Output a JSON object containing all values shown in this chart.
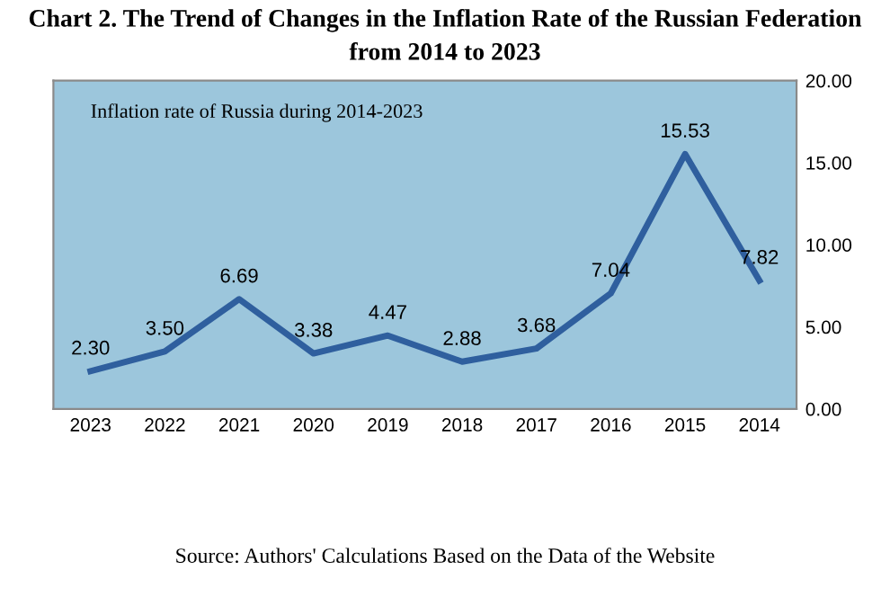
{
  "chart_data": {
    "type": "line",
    "title": "Chart 2. The Trend of Changes in the Inflation Rate of the Russian Federation from 2014 to 2023",
    "subtitle": "Inflation rate of Russia during 2014-2023",
    "categories": [
      "2023",
      "2022",
      "2021",
      "2020",
      "2019",
      "2018",
      "2017",
      "2016",
      "2015",
      "2014"
    ],
    "series": [
      {
        "color": "#2f5f9e",
        "values": [
          2.3,
          3.5,
          6.69,
          3.38,
          4.47,
          2.88,
          3.68,
          7.04,
          15.53,
          7.82
        ],
        "value_labels": [
          "2.30",
          "3.50",
          "6.69",
          "3.38",
          "4.47",
          "2.88",
          "3.68",
          "7.04",
          "15.53",
          "7.82"
        ]
      }
    ],
    "ylim": [
      0,
      20
    ],
    "yticks": [
      {
        "value": 0,
        "label": "0.00"
      },
      {
        "value": 5,
        "label": "5.00"
      },
      {
        "value": 10,
        "label": "10.00"
      },
      {
        "value": 15,
        "label": "15.00"
      },
      {
        "value": 20,
        "label": "20.00"
      }
    ],
    "grid": false,
    "legend": false,
    "marker": "none",
    "line_style": "solid",
    "annotations": [
      "Source: Authors' Calculations Based on the Data of the Website"
    ]
  }
}
